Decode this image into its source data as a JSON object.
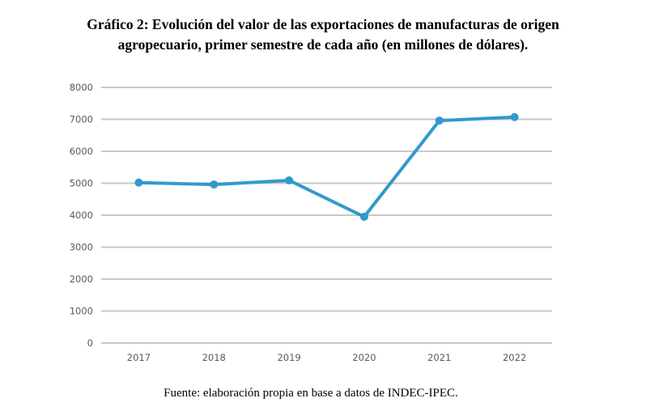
{
  "title_lines": [
    "Gráfico 2: Evolución del valor de las exportaciones de manufacturas de origen",
    "agropecuario, primer semestre de cada año (en millones de dólares)."
  ],
  "source": "Fuente: elaboración propia en base a datos de INDEC-IPEC.",
  "chart_data": {
    "type": "line",
    "title": "Gráfico 2: Evolución del valor de las exportaciones de manufacturas de origen agropecuario, primer semestre de cada año (en millones de dólares).",
    "categories": [
      "2017",
      "2018",
      "2019",
      "2020",
      "2021",
      "2022"
    ],
    "series": [
      {
        "values": [
          5020,
          4960,
          5090,
          3950,
          6960,
          7070
        ]
      }
    ],
    "ylim": [
      0,
      8000
    ],
    "yticks": [
      "0",
      "1000",
      "2000",
      "3000",
      "4000",
      "5000",
      "6000",
      "7000",
      "8000"
    ],
    "grid": true,
    "legend": "none",
    "color": "#3399cc"
  }
}
